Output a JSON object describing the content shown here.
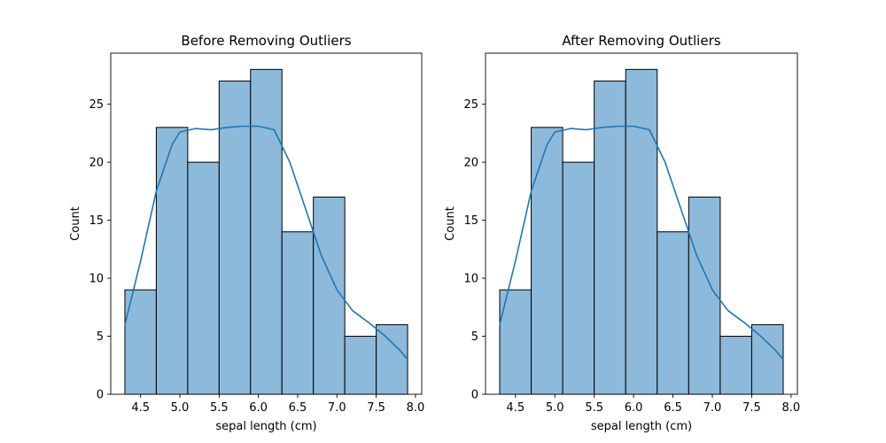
{
  "chart_data": [
    {
      "type": "bar",
      "title": "Before Removing Outliers",
      "xlabel": "sepal length (cm)",
      "ylabel": "Count",
      "xlim": [
        4.12,
        8.08
      ],
      "ylim": [
        0,
        29.4
      ],
      "bin_edges": [
        4.3,
        4.7,
        5.1,
        5.5,
        5.9,
        6.3,
        6.7,
        7.1,
        7.5,
        7.9
      ],
      "values": [
        9,
        23,
        20,
        27,
        28,
        14,
        17,
        5,
        6
      ],
      "kde": {
        "x": [
          4.3,
          4.5,
          4.7,
          4.9,
          5.0,
          5.2,
          5.4,
          5.6,
          5.8,
          6.0,
          6.2,
          6.4,
          6.6,
          6.8,
          7.0,
          7.2,
          7.4,
          7.6,
          7.8,
          7.9
        ],
        "y": [
          6.0,
          11.5,
          17.5,
          21.5,
          22.6,
          22.9,
          22.8,
          23.0,
          23.1,
          23.1,
          22.8,
          20.0,
          16.0,
          12.0,
          9.0,
          7.2,
          6.2,
          5.1,
          3.8,
          3.0
        ]
      },
      "xticks": [
        "4.5",
        "5.0",
        "5.5",
        "6.0",
        "6.5",
        "7.0",
        "7.5",
        "8.0"
      ],
      "yticks": [
        "0",
        "5",
        "10",
        "15",
        "20",
        "25"
      ],
      "bar_color": "#8db9db",
      "line_color": "#1f77b4"
    },
    {
      "type": "bar",
      "title": "After Removing Outliers",
      "xlabel": "sepal length (cm)",
      "ylabel": "Count",
      "xlim": [
        4.12,
        8.08
      ],
      "ylim": [
        0,
        29.4
      ],
      "bin_edges": [
        4.3,
        4.7,
        5.1,
        5.5,
        5.9,
        6.3,
        6.7,
        7.1,
        7.5,
        7.9
      ],
      "values": [
        9,
        23,
        20,
        27,
        28,
        14,
        17,
        5,
        6
      ],
      "kde": {
        "x": [
          4.3,
          4.5,
          4.7,
          4.9,
          5.0,
          5.2,
          5.4,
          5.6,
          5.8,
          6.0,
          6.2,
          6.4,
          6.6,
          6.8,
          7.0,
          7.2,
          7.4,
          7.6,
          7.8,
          7.9
        ],
        "y": [
          6.0,
          11.5,
          17.5,
          21.5,
          22.6,
          22.9,
          22.8,
          23.0,
          23.1,
          23.1,
          22.8,
          20.0,
          16.0,
          12.0,
          9.0,
          7.2,
          6.2,
          5.1,
          3.8,
          3.0
        ]
      },
      "xticks": [
        "4.5",
        "5.0",
        "5.5",
        "6.0",
        "6.5",
        "7.0",
        "7.5",
        "8.0"
      ],
      "yticks": [
        "0",
        "5",
        "10",
        "15",
        "20",
        "25"
      ],
      "bar_color": "#8db9db",
      "line_color": "#1f77b4"
    }
  ]
}
